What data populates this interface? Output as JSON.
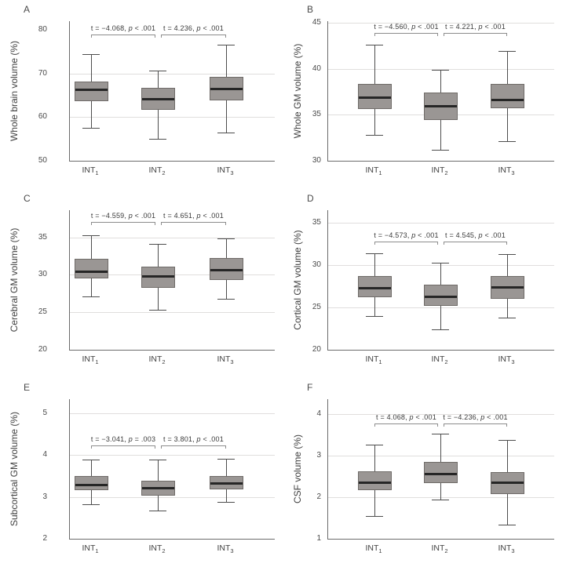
{
  "figure": {
    "background": "#ffffff"
  },
  "colors": {
    "box_fill": "#9a9694",
    "box_border": "#6f6b68",
    "median": "#262626",
    "whisker": "#4d4d4d",
    "gridline": "#e0dedd",
    "axis": "#6b6b6b",
    "bracket": "#8c8c8c",
    "annotation_text": "#3a3a3a",
    "background": "#ffffff"
  },
  "chart_data": [
    {
      "panel": "A",
      "type": "boxplot",
      "ylabel": "Whole brain volume (%)",
      "ylim": [
        50,
        82
      ],
      "yticks": [
        50,
        60,
        70,
        80
      ],
      "gridlines": [
        60,
        70
      ],
      "categories": [
        {
          "label": "INT",
          "sub": "1"
        },
        {
          "label": "INT",
          "sub": "2"
        },
        {
          "label": "INT",
          "sub": "3"
        }
      ],
      "boxes": [
        {
          "whislo": 57.5,
          "q1": 63.7,
          "med": 66.3,
          "q3": 68.2,
          "whishi": 74.5
        },
        {
          "whislo": 55.0,
          "q1": 61.6,
          "med": 64.2,
          "q3": 66.7,
          "whishi": 70.6
        },
        {
          "whislo": 56.4,
          "q1": 63.9,
          "med": 66.5,
          "q3": 69.2,
          "whishi": 76.6
        }
      ],
      "comparisons": [
        {
          "pair": [
            0,
            1
          ],
          "text": "t = −4.068, p < .001"
        },
        {
          "pair": [
            1,
            2
          ],
          "text": "t = 4.236, p < .001"
        }
      ],
      "bracket_y": 79.0
    },
    {
      "panel": "B",
      "type": "boxplot",
      "ylabel": "Whole GM volume (%)",
      "ylim": [
        30,
        45.2
      ],
      "yticks": [
        30,
        35,
        40,
        45
      ],
      "gridlines": [
        35,
        40,
        45
      ],
      "categories": [
        {
          "label": "INT",
          "sub": "1"
        },
        {
          "label": "INT",
          "sub": "2"
        },
        {
          "label": "INT",
          "sub": "3"
        }
      ],
      "boxes": [
        {
          "whislo": 32.8,
          "q1": 35.6,
          "med": 36.9,
          "q3": 38.4,
          "whishi": 42.6
        },
        {
          "whislo": 31.2,
          "q1": 34.4,
          "med": 36.0,
          "q3": 37.4,
          "whishi": 39.9
        },
        {
          "whislo": 32.1,
          "q1": 35.7,
          "med": 36.7,
          "q3": 38.4,
          "whishi": 42.0
        }
      ],
      "comparisons": [
        {
          "pair": [
            0,
            1
          ],
          "text": "t = −4.560, p < .001"
        },
        {
          "pair": [
            1,
            2
          ],
          "text": "t = 4.221, p < .001"
        }
      ],
      "bracket_y": 43.9
    },
    {
      "panel": "C",
      "type": "boxplot",
      "ylabel": "Cerebral GM volume (%)",
      "ylim": [
        20,
        38.6
      ],
      "yticks": [
        20,
        25,
        30,
        35
      ],
      "gridlines": [
        25,
        30,
        35
      ],
      "categories": [
        {
          "label": "INT",
          "sub": "1"
        },
        {
          "label": "INT",
          "sub": "2"
        },
        {
          "label": "INT",
          "sub": "3"
        }
      ],
      "boxes": [
        {
          "whislo": 27.1,
          "q1": 29.5,
          "med": 30.5,
          "q3": 32.1,
          "whishi": 35.3
        },
        {
          "whislo": 25.3,
          "q1": 28.3,
          "med": 29.8,
          "q3": 31.1,
          "whishi": 34.1
        },
        {
          "whislo": 26.8,
          "q1": 29.3,
          "med": 30.7,
          "q3": 32.2,
          "whishi": 34.8
        }
      ],
      "comparisons": [
        {
          "pair": [
            0,
            1
          ],
          "text": "t = −4.559, p < .001"
        },
        {
          "pair": [
            1,
            2
          ],
          "text": "t = 4.651, p < .001"
        }
      ],
      "bracket_y": 37.0
    },
    {
      "panel": "D",
      "type": "boxplot",
      "ylabel": "Cortical GM volume (%)",
      "ylim": [
        20,
        36.5
      ],
      "yticks": [
        20,
        25,
        30,
        35
      ],
      "gridlines": [
        25,
        30,
        35
      ],
      "categories": [
        {
          "label": "INT",
          "sub": "1"
        },
        {
          "label": "INT",
          "sub": "2"
        },
        {
          "label": "INT",
          "sub": "3"
        }
      ],
      "boxes": [
        {
          "whislo": 24.0,
          "q1": 26.2,
          "med": 27.3,
          "q3": 28.7,
          "whishi": 31.4
        },
        {
          "whislo": 22.4,
          "q1": 25.2,
          "med": 26.3,
          "q3": 27.7,
          "whishi": 30.3
        },
        {
          "whislo": 23.8,
          "q1": 26.0,
          "med": 27.4,
          "q3": 28.7,
          "whishi": 31.3
        }
      ],
      "comparisons": [
        {
          "pair": [
            0,
            1
          ],
          "text": "t = −4.573, p < .001"
        },
        {
          "pair": [
            1,
            2
          ],
          "text": "t = 4.545, p < .001"
        }
      ],
      "bracket_y": 32.8
    },
    {
      "panel": "E",
      "type": "boxplot",
      "ylabel": "Subcortical GM volume (%)",
      "ylim": [
        2,
        5.33
      ],
      "yticks": [
        2,
        3,
        4,
        5
      ],
      "gridlines": [
        3,
        4,
        5
      ],
      "categories": [
        {
          "label": "INT",
          "sub": "1"
        },
        {
          "label": "INT",
          "sub": "2"
        },
        {
          "label": "INT",
          "sub": "3"
        }
      ],
      "boxes": [
        {
          "whislo": 2.82,
          "q1": 3.16,
          "med": 3.3,
          "q3": 3.49,
          "whishi": 3.89
        },
        {
          "whislo": 2.67,
          "q1": 3.02,
          "med": 3.21,
          "q3": 3.38,
          "whishi": 3.89
        },
        {
          "whislo": 2.88,
          "q1": 3.17,
          "med": 3.32,
          "q3": 3.5,
          "whishi": 3.9
        }
      ],
      "comparisons": [
        {
          "pair": [
            0,
            1
          ],
          "text": "t = −3.041, p = .003"
        },
        {
          "pair": [
            1,
            2
          ],
          "text": "t = 3.801, p < .001"
        }
      ],
      "bracket_y": 4.23
    },
    {
      "panel": "F",
      "type": "boxplot",
      "ylabel": "CSF volume (%)",
      "ylim": [
        1,
        4.35
      ],
      "yticks": [
        1,
        2,
        3,
        4
      ],
      "gridlines": [
        2,
        3,
        4
      ],
      "categories": [
        {
          "label": "INT",
          "sub": "1"
        },
        {
          "label": "INT",
          "sub": "2"
        },
        {
          "label": "INT",
          "sub": "3"
        }
      ],
      "boxes": [
        {
          "whislo": 1.55,
          "q1": 2.16,
          "med": 2.36,
          "q3": 2.62,
          "whishi": 3.25
        },
        {
          "whislo": 1.95,
          "q1": 2.34,
          "med": 2.56,
          "q3": 2.84,
          "whishi": 3.53
        },
        {
          "whislo": 1.34,
          "q1": 2.08,
          "med": 2.35,
          "q3": 2.61,
          "whishi": 3.37
        }
      ],
      "comparisons": [
        {
          "pair": [
            0,
            1
          ],
          "text": "t = 4.068, p < .001"
        },
        {
          "pair": [
            1,
            2
          ],
          "text": "t = −4.236, p < .001"
        }
      ],
      "bracket_y": 3.76
    }
  ]
}
